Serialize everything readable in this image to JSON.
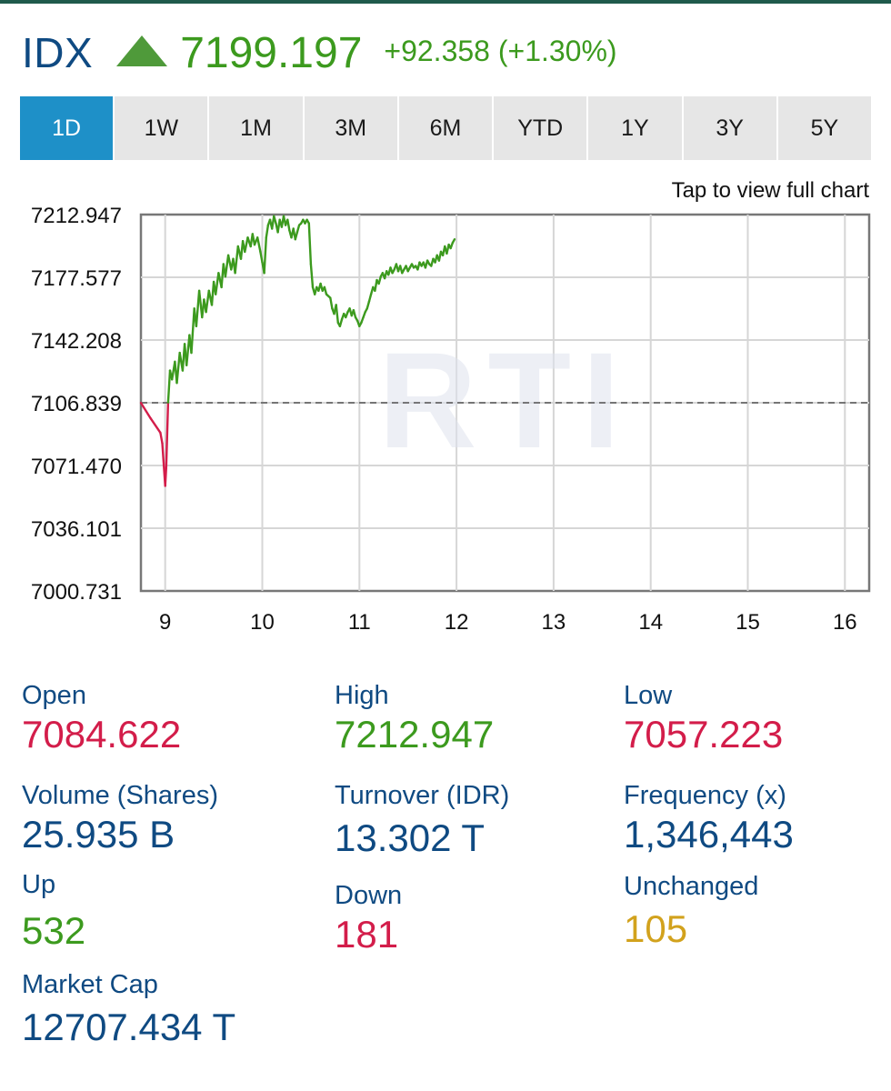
{
  "header": {
    "ticker": "IDX",
    "price": "7199.197",
    "change": "+92.358 (+1.30%)",
    "trend_icon": "triangle-up-icon"
  },
  "tabs": [
    {
      "label": "1D",
      "active": true
    },
    {
      "label": "1W"
    },
    {
      "label": "1M"
    },
    {
      "label": "3M"
    },
    {
      "label": "6M"
    },
    {
      "label": "YTD"
    },
    {
      "label": "1Y"
    },
    {
      "label": "3Y"
    },
    {
      "label": "5Y"
    }
  ],
  "chart": {
    "hint": "Tap to view full chart",
    "watermark": "RTI"
  },
  "chart_data": {
    "type": "line",
    "y_ticks": [
      "7212.947",
      "7177.577",
      "7142.208",
      "7106.839",
      "7071.470",
      "7036.101",
      "7000.731"
    ],
    "x_ticks": [
      "9",
      "10",
      "11",
      "12",
      "13",
      "14",
      "15",
      "16"
    ],
    "ylim": [
      7000.731,
      7212.947
    ],
    "xlim": [
      8.75,
      16.25
    ],
    "previous_close": 7106.839,
    "grid": true,
    "colors": {
      "up": "#3c9a1e",
      "down": "#d31d4a"
    },
    "series": [
      {
        "values": [
          [
            8.75,
            7106.8
          ],
          [
            8.85,
            7098
          ],
          [
            8.95,
            7090
          ],
          [
            8.97,
            7084
          ],
          [
            9.0,
            7060
          ],
          [
            9.01,
            7070
          ],
          [
            9.03,
            7107
          ],
          [
            9.05,
            7125
          ],
          [
            9.07,
            7120
          ],
          [
            9.1,
            7130
          ],
          [
            9.12,
            7118
          ],
          [
            9.15,
            7135
          ],
          [
            9.18,
            7125
          ],
          [
            9.2,
            7140
          ],
          [
            9.22,
            7128
          ],
          [
            9.25,
            7145
          ],
          [
            9.27,
            7135
          ],
          [
            9.3,
            7160
          ],
          [
            9.32,
            7150
          ],
          [
            9.35,
            7170
          ],
          [
            9.38,
            7155
          ],
          [
            9.4,
            7165
          ],
          [
            9.42,
            7158
          ],
          [
            9.45,
            7170
          ],
          [
            9.48,
            7162
          ],
          [
            9.5,
            7175
          ],
          [
            9.52,
            7168
          ],
          [
            9.55,
            7180
          ],
          [
            9.58,
            7172
          ],
          [
            9.6,
            7185
          ],
          [
            9.62,
            7178
          ],
          [
            9.65,
            7190
          ],
          [
            9.68,
            7182
          ],
          [
            9.7,
            7188
          ],
          [
            9.72,
            7180
          ],
          [
            9.75,
            7195
          ],
          [
            9.78,
            7188
          ],
          [
            9.8,
            7198
          ],
          [
            9.82,
            7192
          ],
          [
            9.85,
            7200
          ],
          [
            9.88,
            7195
          ],
          [
            9.9,
            7202
          ],
          [
            9.92,
            7196
          ],
          [
            9.95,
            7200
          ],
          [
            9.98,
            7192
          ],
          [
            10.0,
            7186
          ],
          [
            10.02,
            7180
          ],
          [
            10.04,
            7200
          ],
          [
            10.06,
            7207
          ],
          [
            10.08,
            7210
          ],
          [
            10.1,
            7205
          ],
          [
            10.12,
            7212
          ],
          [
            10.14,
            7208
          ],
          [
            10.16,
            7203
          ],
          [
            10.18,
            7210
          ],
          [
            10.2,
            7206
          ],
          [
            10.22,
            7212
          ],
          [
            10.24,
            7207
          ],
          [
            10.26,
            7210
          ],
          [
            10.28,
            7204
          ],
          [
            10.3,
            7200
          ],
          [
            10.32,
            7205
          ],
          [
            10.34,
            7199
          ],
          [
            10.36,
            7203
          ],
          [
            10.38,
            7207
          ],
          [
            10.4,
            7208
          ],
          [
            10.42,
            7210
          ],
          [
            10.44,
            7208
          ],
          [
            10.46,
            7210
          ],
          [
            10.48,
            7208
          ],
          [
            10.5,
            7185
          ],
          [
            10.52,
            7172
          ],
          [
            10.54,
            7168
          ],
          [
            10.56,
            7172
          ],
          [
            10.58,
            7170
          ],
          [
            10.6,
            7174
          ],
          [
            10.62,
            7170
          ],
          [
            10.64,
            7172
          ],
          [
            10.66,
            7168
          ],
          [
            10.7,
            7166
          ],
          [
            10.72,
            7160
          ],
          [
            10.74,
            7157
          ],
          [
            10.76,
            7162
          ],
          [
            10.78,
            7152
          ],
          [
            10.8,
            7150
          ],
          [
            10.82,
            7154
          ],
          [
            10.84,
            7157
          ],
          [
            10.86,
            7155
          ],
          [
            10.88,
            7158
          ],
          [
            10.9,
            7160
          ],
          [
            10.92,
            7156
          ],
          [
            10.94,
            7159
          ],
          [
            10.96,
            7155
          ],
          [
            10.98,
            7153
          ],
          [
            11.0,
            7150
          ],
          [
            11.02,
            7152
          ],
          [
            11.04,
            7155
          ],
          [
            11.06,
            7158
          ],
          [
            11.08,
            7160
          ],
          [
            11.1,
            7164
          ],
          [
            11.12,
            7168
          ],
          [
            11.14,
            7172
          ],
          [
            11.16,
            7170
          ],
          [
            11.18,
            7176
          ],
          [
            11.2,
            7174
          ],
          [
            11.22,
            7178
          ],
          [
            11.24,
            7180
          ],
          [
            11.26,
            7177
          ],
          [
            11.28,
            7181
          ],
          [
            11.3,
            7179
          ],
          [
            11.32,
            7183
          ],
          [
            11.34,
            7180
          ],
          [
            11.36,
            7182
          ],
          [
            11.38,
            7185
          ],
          [
            11.4,
            7181
          ],
          [
            11.42,
            7184
          ],
          [
            11.44,
            7180
          ],
          [
            11.46,
            7182
          ],
          [
            11.48,
            7184
          ],
          [
            11.5,
            7181
          ],
          [
            11.52,
            7183
          ],
          [
            11.54,
            7185
          ],
          [
            11.56,
            7183
          ],
          [
            11.58,
            7184
          ],
          [
            11.6,
            7182
          ],
          [
            11.62,
            7186
          ],
          [
            11.64,
            7184
          ],
          [
            11.66,
            7186
          ],
          [
            11.68,
            7183
          ],
          [
            11.7,
            7187
          ],
          [
            11.72,
            7185
          ],
          [
            11.74,
            7184
          ],
          [
            11.76,
            7188
          ],
          [
            11.78,
            7186
          ],
          [
            11.8,
            7190
          ],
          [
            11.82,
            7187
          ],
          [
            11.84,
            7192
          ],
          [
            11.86,
            7190
          ],
          [
            11.88,
            7195
          ],
          [
            11.9,
            7191
          ],
          [
            11.92,
            7196
          ],
          [
            11.94,
            7194
          ],
          [
            11.96,
            7197
          ],
          [
            11.98,
            7199
          ]
        ]
      }
    ]
  },
  "stats": {
    "open": {
      "label": "Open",
      "value": "7084.622"
    },
    "high": {
      "label": "High",
      "value": "7212.947"
    },
    "low": {
      "label": "Low",
      "value": "7057.223"
    },
    "volume": {
      "label": "Volume (Shares)",
      "value": "25.935 B"
    },
    "turnover": {
      "label": "Turnover (IDR)",
      "value": "13.302 T"
    },
    "frequency": {
      "label": "Frequency (x)",
      "value": "1,346,443"
    },
    "up": {
      "label": "Up",
      "value": "532"
    },
    "down": {
      "label": "Down",
      "value": "181"
    },
    "unchanged": {
      "label": "Unchanged",
      "value": "105"
    },
    "market_cap": {
      "label": "Market Cap",
      "value": "12707.434 T"
    }
  }
}
